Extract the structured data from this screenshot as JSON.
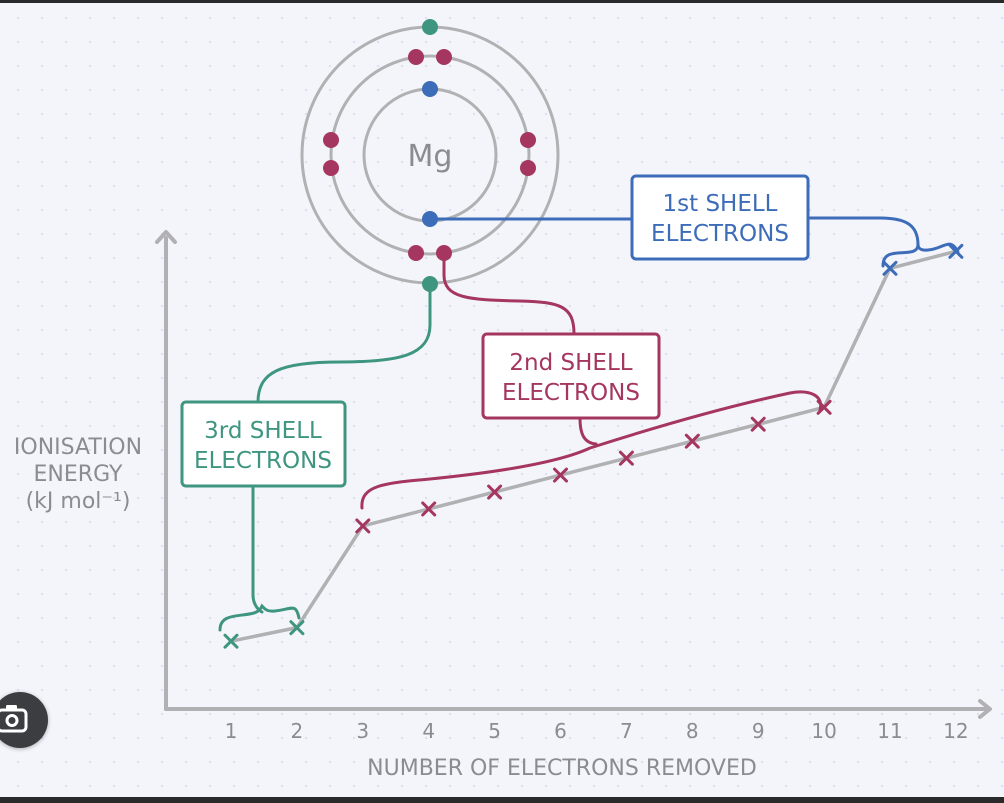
{
  "chart_data": {
    "type": "line",
    "title": "",
    "ylabel_lines": [
      "IONISATION",
      "ENERGY",
      "(kJ mol⁻¹)"
    ],
    "xlabel": "NUMBER OF ELECTRONS REMOVED",
    "categories": [
      "1",
      "2",
      "3",
      "4",
      "5",
      "6",
      "7",
      "8",
      "9",
      "10",
      "11",
      "12"
    ],
    "x": [
      1,
      2,
      3,
      4,
      5,
      6,
      7,
      8,
      9,
      10,
      11,
      12
    ],
    "y_relative": [
      0.1,
      0.12,
      0.27,
      0.295,
      0.32,
      0.345,
      0.37,
      0.395,
      0.42,
      0.445,
      0.65,
      0.675
    ],
    "ylim": [
      0,
      1
    ],
    "grid": false,
    "groups": [
      {
        "label_line1": "3rd SHELL",
        "label_line2": "ELECTRONS",
        "from": 1,
        "to": 2,
        "color": "#3e9580"
      },
      {
        "label_line1": "2nd SHELL",
        "label_line2": "ELECTRONS",
        "from": 3,
        "to": 10,
        "color": "#a5365f"
      },
      {
        "label_line1": "1st SHELL",
        "label_line2": "ELECTRONS",
        "from": 11,
        "to": 12,
        "color": "#3d6cb9"
      }
    ]
  },
  "atom": {
    "symbol": "Mg"
  },
  "colors": {
    "line": "#b1b1b3",
    "axis": "#b1b1b3",
    "text": "#8b8c91",
    "shell3": "#3e9580",
    "shell2": "#a5365f",
    "shell1": "#3d6cb9"
  },
  "icons": {
    "camera": "camera-search-icon"
  }
}
